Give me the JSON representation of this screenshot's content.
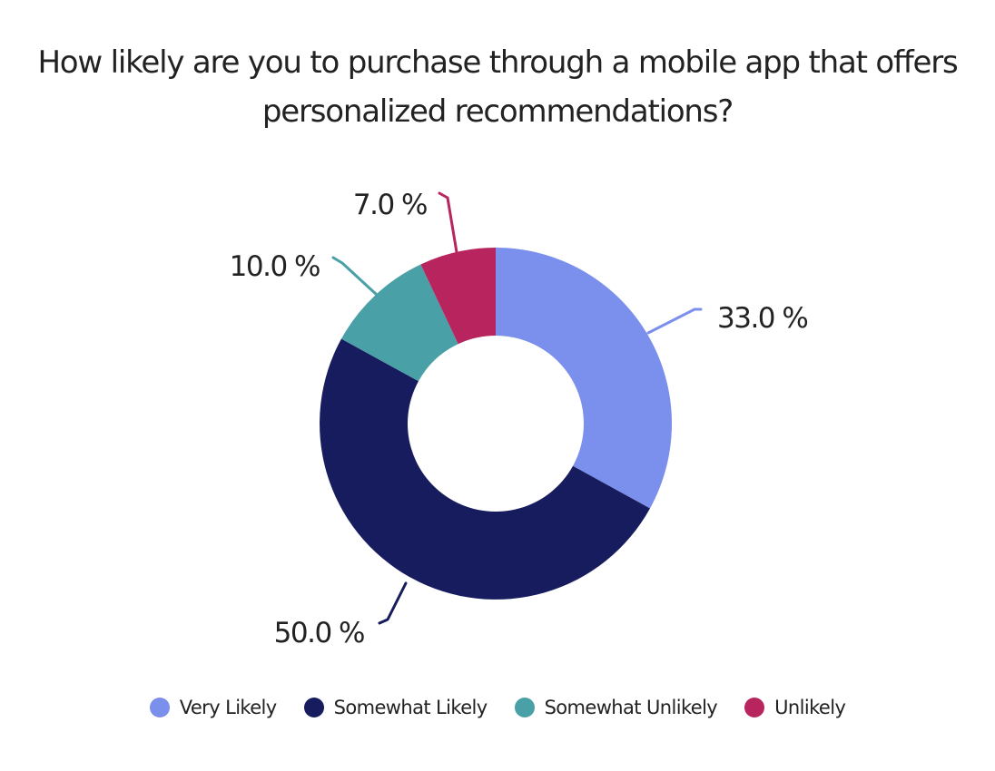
{
  "chart_data": {
    "type": "pie",
    "variant": "donut",
    "title": "How likely are you to purchase through a mobile app that offers personalized recommendations?",
    "categories": [
      "Very Likely",
      "Somewhat Likely",
      "Somewhat Unlikely",
      "Unlikely"
    ],
    "values": [
      33.0,
      50.0,
      10.0,
      7.0
    ],
    "value_labels": [
      "33.0 %",
      "50.0 %",
      "10.0 %",
      "7.0 %"
    ],
    "colors": [
      "#7b8fec",
      "#161c5e",
      "#49a0a6",
      "#b8255e"
    ],
    "legend_position": "bottom"
  }
}
